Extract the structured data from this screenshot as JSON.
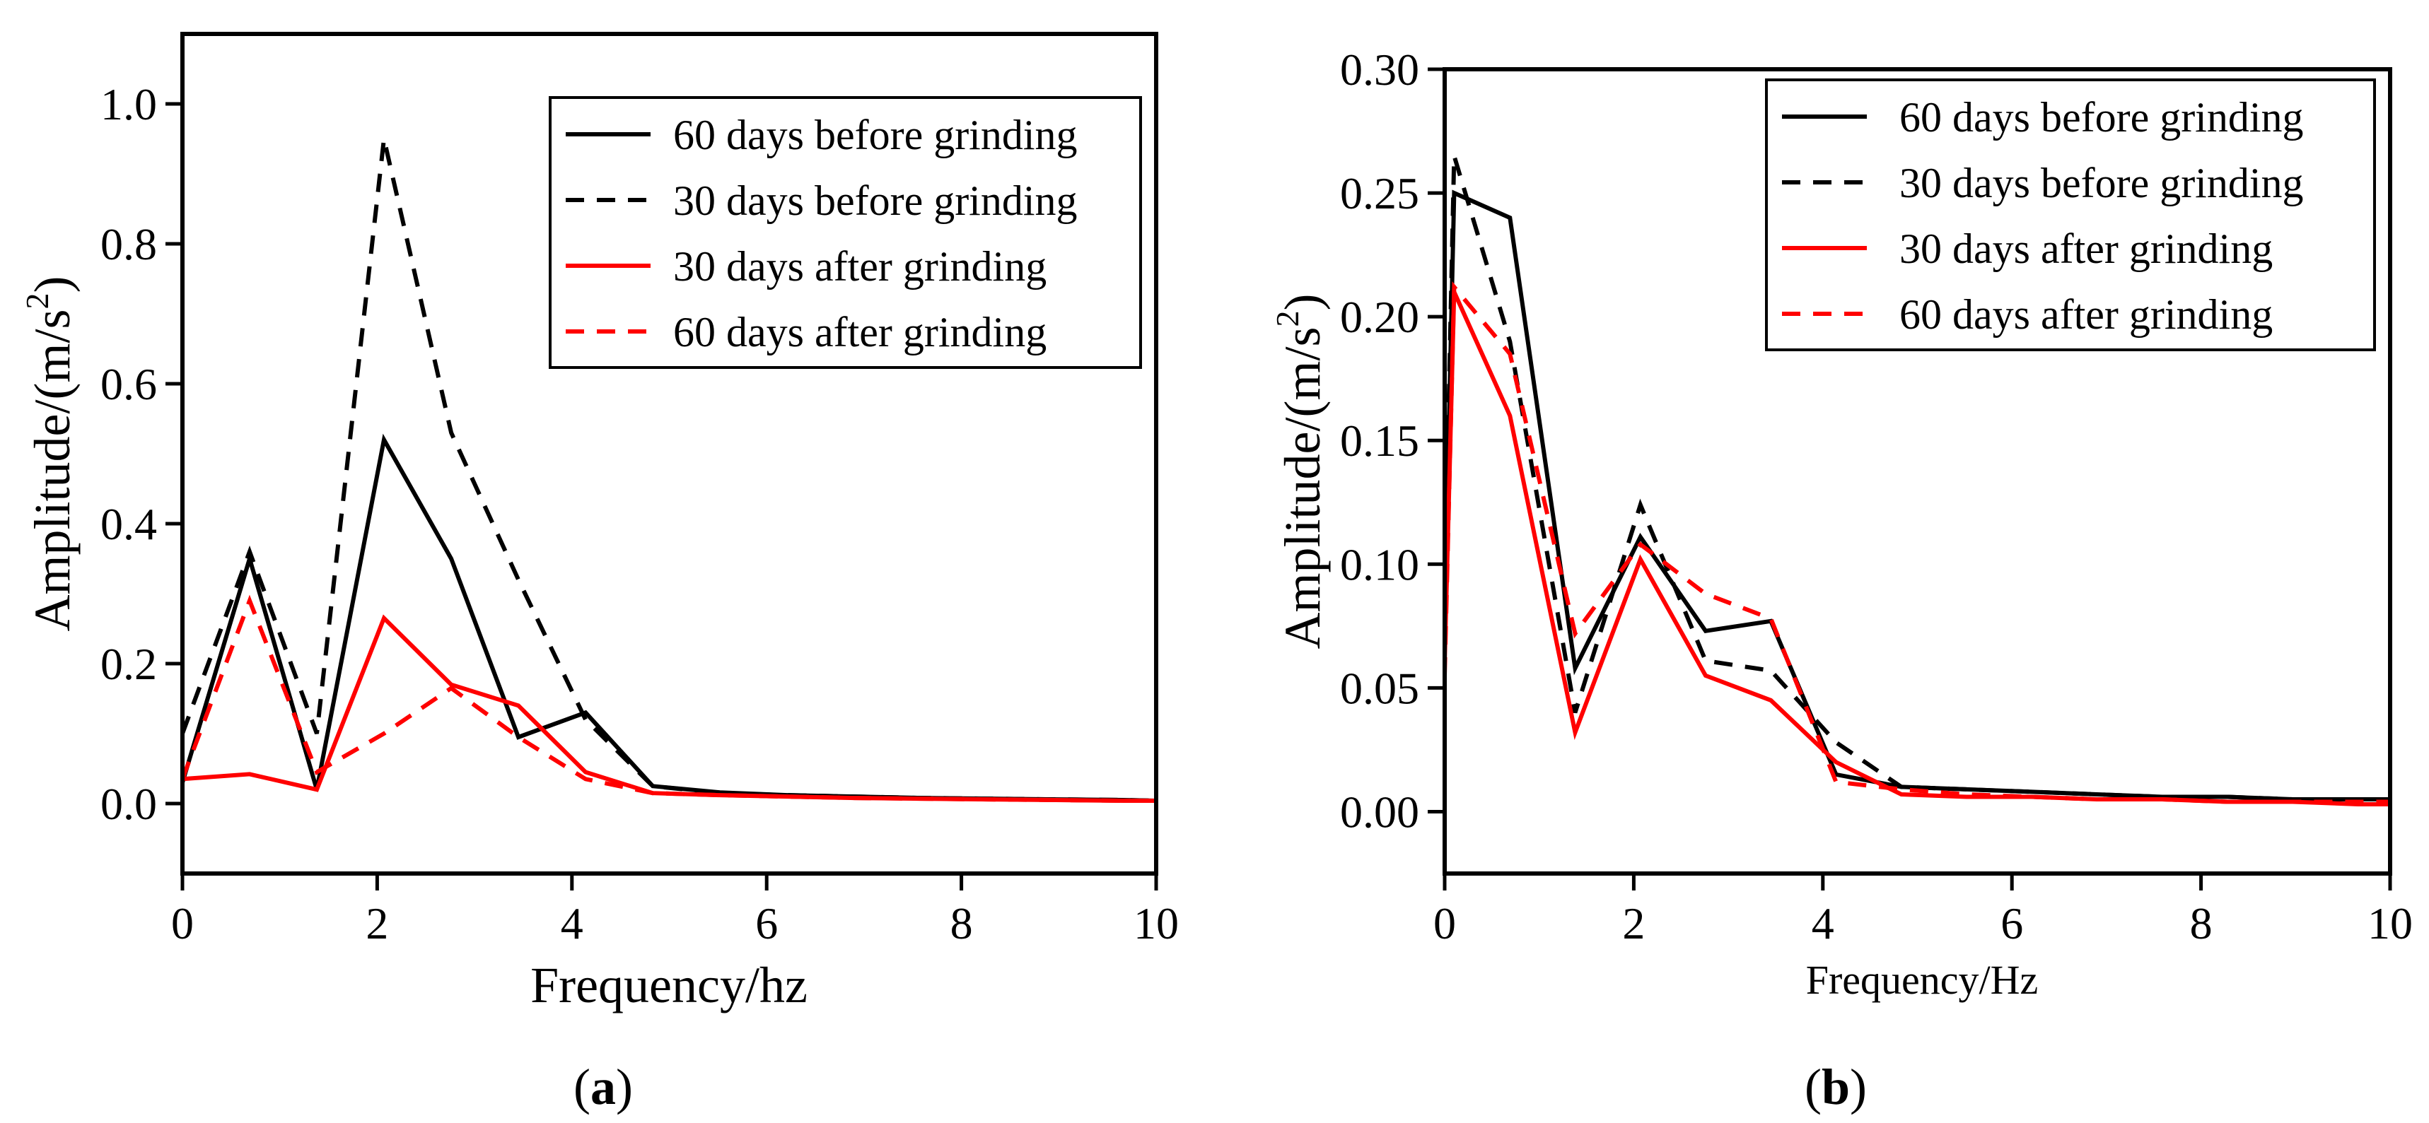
{
  "chart_data": [
    {
      "type": "line",
      "panel_label": "a",
      "xlabel": "Frequency/hz",
      "ylabel": "Amplitude/(m/s2)",
      "ylabel_parts": [
        "Amplitude/(m/s",
        "2",
        ")"
      ],
      "xlim": [
        0,
        10
      ],
      "ylim": [
        -0.1,
        1.1
      ],
      "x_ticks": [
        0,
        2,
        4,
        6,
        8,
        10
      ],
      "y_ticks": [
        0.0,
        0.2,
        0.4,
        0.6,
        0.8,
        1.0
      ],
      "x_tick_labels": [
        "0",
        "2",
        "4",
        "6",
        "8",
        "10"
      ],
      "y_tick_labels": [
        "0.0",
        "0.2",
        "0.4",
        "0.6",
        "0.8",
        "1.0"
      ],
      "legend_position": "top-right",
      "series": [
        {
          "name": "60 days before grinding",
          "color": "#000000",
          "dash": "solid",
          "x": [
            0,
            0.69,
            1.38,
            2.07,
            2.76,
            3.45,
            4.14,
            4.83,
            5.52,
            6.21,
            6.9,
            7.59,
            8.28,
            8.97,
            9.66,
            10
          ],
          "y": [
            0.03,
            0.35,
            0.02,
            0.52,
            0.35,
            0.095,
            0.13,
            0.025,
            0.016,
            0.012,
            0.01,
            0.008,
            0.007,
            0.006,
            0.005,
            0.004
          ]
        },
        {
          "name": "30 days before grinding",
          "color": "#000000",
          "dash": "dashed",
          "x": [
            0,
            0.69,
            1.38,
            2.07,
            2.76,
            3.45,
            4.14,
            4.83,
            5.52,
            6.21,
            6.9,
            7.59,
            8.28,
            8.97,
            9.66,
            10
          ],
          "y": [
            0.1,
            0.36,
            0.1,
            0.95,
            0.53,
            0.32,
            0.12,
            0.025,
            0.015,
            0.012,
            0.01,
            0.008,
            0.007,
            0.006,
            0.005,
            0.004
          ]
        },
        {
          "name": "30 days after grinding",
          "color": "#ff0000",
          "dash": "solid",
          "x": [
            0,
            0.69,
            1.38,
            2.07,
            2.76,
            3.45,
            4.14,
            4.83,
            5.52,
            6.21,
            6.9,
            7.59,
            8.28,
            8.97,
            9.66,
            10
          ],
          "y": [
            0.035,
            0.042,
            0.02,
            0.265,
            0.17,
            0.14,
            0.045,
            0.015,
            0.012,
            0.01,
            0.008,
            0.007,
            0.006,
            0.005,
            0.004,
            0.004
          ]
        },
        {
          "name": "60 days after grinding",
          "color": "#ff0000",
          "dash": "dashed",
          "x": [
            0,
            0.69,
            1.38,
            2.07,
            2.76,
            3.45,
            4.14,
            4.83,
            5.52,
            6.21,
            6.9,
            7.59,
            8.28,
            8.97,
            9.66,
            10
          ],
          "y": [
            0.035,
            0.29,
            0.045,
            0.1,
            0.165,
            0.095,
            0.035,
            0.015,
            0.012,
            0.01,
            0.008,
            0.007,
            0.006,
            0.005,
            0.004,
            0.004
          ]
        }
      ]
    },
    {
      "type": "line",
      "panel_label": "b",
      "xlabel": "Frequency/Hz",
      "ylabel": "Amplitude/(m/s2)",
      "ylabel_parts": [
        "Amplitude/(m/s",
        "2",
        ")"
      ],
      "xlim": [
        0,
        10
      ],
      "ylim": [
        -0.025,
        0.3
      ],
      "x_ticks": [
        0,
        2,
        4,
        6,
        8,
        10
      ],
      "y_ticks": [
        0.0,
        0.05,
        0.1,
        0.15,
        0.2,
        0.25,
        0.3
      ],
      "x_tick_labels": [
        "0",
        "2",
        "4",
        "6",
        "8",
        "10"
      ],
      "y_tick_labels": [
        "0.00",
        "0.05",
        "0.10",
        "0.15",
        "0.20",
        "0.25",
        "0.30"
      ],
      "legend_position": "top-right",
      "series": [
        {
          "name": "60 days before grinding",
          "color": "#000000",
          "dash": "solid",
          "x": [
            0,
            0.1,
            0.69,
            1.38,
            2.07,
            2.76,
            3.45,
            4.14,
            4.83,
            5.52,
            6.21,
            6.9,
            7.59,
            8.28,
            8.97,
            9.66,
            10
          ],
          "y": [
            0.08,
            0.25,
            0.24,
            0.058,
            0.111,
            0.073,
            0.077,
            0.015,
            0.01,
            0.009,
            0.008,
            0.007,
            0.006,
            0.006,
            0.005,
            0.005,
            0.005
          ]
        },
        {
          "name": "30 days before grinding",
          "color": "#000000",
          "dash": "dashed",
          "x": [
            0,
            0.1,
            0.69,
            1.38,
            2.07,
            2.76,
            3.45,
            4.14,
            4.83,
            5.52,
            6.21,
            6.9,
            7.59,
            8.28,
            8.97,
            9.66,
            10
          ],
          "y": [
            0.09,
            0.265,
            0.19,
            0.04,
            0.124,
            0.061,
            0.057,
            0.028,
            0.01,
            0.009,
            0.008,
            0.007,
            0.006,
            0.006,
            0.005,
            0.005,
            0.005
          ]
        },
        {
          "name": "30 days after grinding",
          "color": "#ff0000",
          "dash": "solid",
          "x": [
            0,
            0.1,
            0.69,
            1.38,
            2.07,
            2.76,
            3.45,
            4.14,
            4.83,
            5.52,
            6.21,
            6.9,
            7.59,
            8.28,
            8.97,
            9.66,
            10
          ],
          "y": [
            0.06,
            0.21,
            0.16,
            0.032,
            0.102,
            0.055,
            0.045,
            0.02,
            0.007,
            0.006,
            0.006,
            0.005,
            0.005,
            0.004,
            0.004,
            0.003,
            0.003
          ]
        },
        {
          "name": "60 days after grinding",
          "color": "#ff0000",
          "dash": "dashed",
          "x": [
            0,
            0.1,
            0.69,
            1.38,
            2.07,
            2.76,
            3.45,
            4.14,
            4.83,
            5.52,
            6.21,
            6.9,
            7.59,
            8.28,
            8.97,
            9.66,
            10
          ],
          "y": [
            0.055,
            0.212,
            0.185,
            0.072,
            0.108,
            0.088,
            0.078,
            0.012,
            0.009,
            0.007,
            0.006,
            0.005,
            0.005,
            0.004,
            0.004,
            0.004,
            0.004
          ]
        }
      ]
    }
  ]
}
